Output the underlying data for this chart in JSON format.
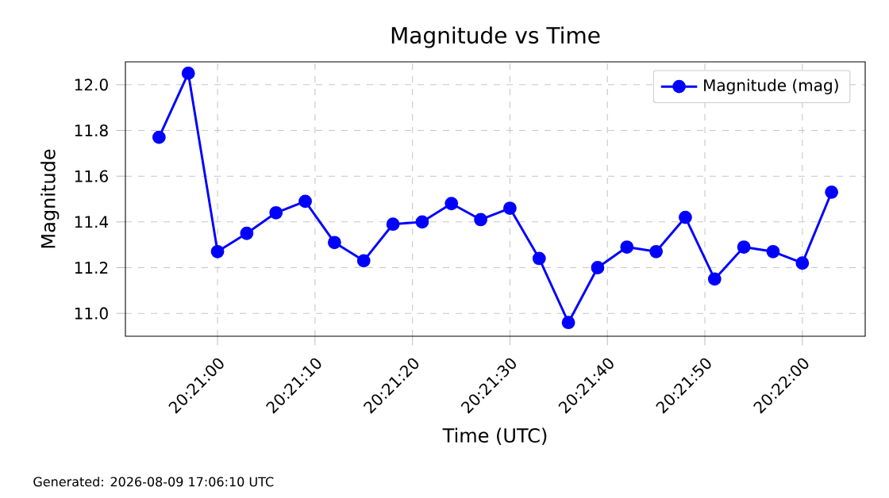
{
  "chart_data": {
    "type": "line",
    "title": "Magnitude vs Time",
    "xlabel": "Time (UTC)",
    "ylabel": "Magnitude",
    "annotations": [
      "Generated: 2026-08-09 17:06:10 UTC"
    ],
    "x": [
      20.348333,
      20.349167,
      20.35,
      20.350833,
      20.351667,
      20.3525,
      20.353333,
      20.354167,
      20.355,
      20.355833,
      20.356667,
      20.3575,
      20.358333,
      20.359167,
      20.36,
      20.360833,
      20.361667,
      20.3625,
      20.363333,
      20.364167,
      20.365,
      20.365833,
      20.366667,
      20.3675
    ],
    "series": [
      {
        "name": "Magnitude (mag)",
        "color": "#0000ff",
        "values": [
          11.77,
          12.05,
          11.27,
          11.35,
          11.44,
          11.49,
          11.31,
          11.23,
          11.39,
          11.4,
          11.48,
          11.41,
          11.46,
          11.24,
          10.96,
          11.2,
          11.29,
          11.27,
          11.42,
          11.15,
          11.29,
          11.27,
          11.22,
          11.53
        ]
      }
    ],
    "xlim": [
      20.347375,
      20.368458
    ],
    "xticks": [
      {
        "value": 20.35,
        "label": "20:21:00"
      },
      {
        "value": 20.352778,
        "label": "20:21:10"
      },
      {
        "value": 20.355556,
        "label": "20:21:20"
      },
      {
        "value": 20.358333,
        "label": "20:21:30"
      },
      {
        "value": 20.361111,
        "label": "20:21:40"
      },
      {
        "value": 20.363889,
        "label": "20:21:50"
      },
      {
        "value": 20.366667,
        "label": "20:22:00"
      }
    ],
    "ylim": [
      10.9,
      12.1
    ],
    "yticks": [
      {
        "value": 11,
        "label": "11.0"
      },
      11.2,
      11.4,
      11.6,
      11.8,
      {
        "value": 12,
        "label": "12.0"
      }
    ],
    "grid": true,
    "legend": "top right",
    "marker": "circle",
    "line_style": "solid"
  }
}
